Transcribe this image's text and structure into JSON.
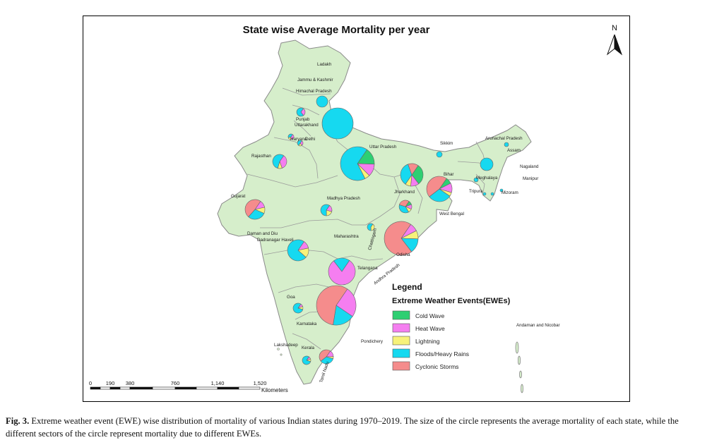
{
  "map": {
    "title": "State wise Average Mortality per year",
    "north_label": "N",
    "land_color": "#d6eecb",
    "border_color": "#8a8a8a"
  },
  "legend": {
    "title": "Legend",
    "subtitle": "Extreme Weather Events(EWEs)",
    "items": [
      {
        "label": "Cold Wave",
        "color": "#2ecf72"
      },
      {
        "label": "Heat Wave",
        "color": "#f57ef0"
      },
      {
        "label": "Lightning",
        "color": "#f7f27a"
      },
      {
        "label": "Floods/Heavy Rains",
        "color": "#16d9f0"
      },
      {
        "label": "Cyclonic Storms",
        "color": "#f58c8c"
      }
    ]
  },
  "scale_bar": {
    "ticks": [
      "0",
      "190",
      "380",
      "760",
      "1,140",
      "1,520"
    ],
    "unit": "Kilometers"
  },
  "states": [
    {
      "name": "Ladakh"
    },
    {
      "name": "Jammu & Kashmir"
    },
    {
      "name": "Himachal Pradesh"
    },
    {
      "name": "Punjab"
    },
    {
      "name": "Uttarakhand"
    },
    {
      "name": "Haryana"
    },
    {
      "name": "Delhi"
    },
    {
      "name": "Rajasthan"
    },
    {
      "name": "Uttar Pradesh"
    },
    {
      "name": "Sikkim"
    },
    {
      "name": "Arunachal Pradesh"
    },
    {
      "name": "Assam"
    },
    {
      "name": "Nagaland"
    },
    {
      "name": "Meghalaya"
    },
    {
      "name": "Manipur"
    },
    {
      "name": "Tripura"
    },
    {
      "name": "Mizoram"
    },
    {
      "name": "Bihar"
    },
    {
      "name": "Jharkhand"
    },
    {
      "name": "West Bengal"
    },
    {
      "name": "Gujarat"
    },
    {
      "name": "Madhya Pradesh"
    },
    {
      "name": "Chattisgarh"
    },
    {
      "name": "Odisha"
    },
    {
      "name": "Daman and Diu"
    },
    {
      "name": "Dadranagar Haveli"
    },
    {
      "name": "Maharashtra"
    },
    {
      "name": "Telangana"
    },
    {
      "name": "Andhra Pradesh"
    },
    {
      "name": "Goa"
    },
    {
      "name": "Karnataka"
    },
    {
      "name": "Lakshadeep"
    },
    {
      "name": "Kerala"
    },
    {
      "name": "Tamil Nadu"
    },
    {
      "name": "Pondichery"
    },
    {
      "name": "Andaman and Nicobar"
    }
  ],
  "caption": {
    "fig_label": "Fig. 3.",
    "text": "Extreme weather event (EWE) wise distribution of mortality of various Indian states during 1970–2019. The size of the circle represents the average mortality of each state, while the different sectors of the circle represent mortality due to different EWEs."
  }
}
